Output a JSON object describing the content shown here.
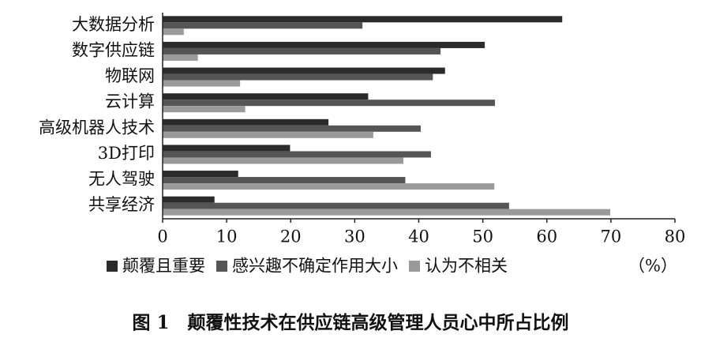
{
  "chart_data": {
    "type": "barh",
    "title": "图 1　颠覆性技术在供应链高级管理人员心中所占比例",
    "x_label": "（%）",
    "categories": [
      "大数据分析",
      "数字供应链",
      "物联网",
      "云计算",
      "高级机器人技术",
      "3D打印",
      "无人驾驶",
      "共享经济"
    ],
    "series": [
      {
        "name": "颠覆且重要",
        "color": "#2b2b2b",
        "values": [
          62.4,
          50.3,
          44.1,
          32.1,
          25.9,
          19.9,
          11.8,
          8.1
        ]
      },
      {
        "name": "感兴趣不确定作用大小",
        "color": "#555555",
        "values": [
          31.2,
          43.4,
          42.2,
          51.9,
          40.3,
          41.9,
          37.9,
          54.1
        ]
      },
      {
        "name": "认为不相关",
        "color": "#9a9a9a",
        "values": [
          3.3,
          5.5,
          12.1,
          12.9,
          32.9,
          37.6,
          51.8,
          69.9
        ]
      }
    ],
    "xlim": [
      0,
      80
    ],
    "xticks": [
      0,
      10,
      20,
      30,
      40,
      50,
      60,
      70,
      80
    ],
    "grid": false
  }
}
